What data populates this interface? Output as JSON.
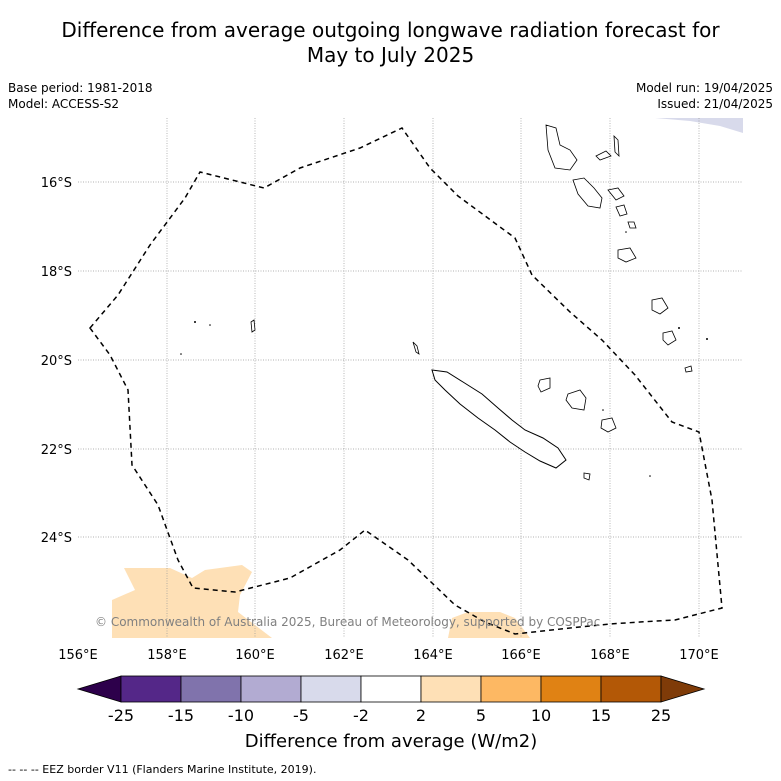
{
  "title_line1": "Difference from average outgoing longwave radiation forecast for",
  "title_line2": "May to July 2025",
  "base_period": "Base period: 1981-2018",
  "model": "Model: ACCESS-S2",
  "model_run": "Model run: 19/04/2025",
  "issued": "Issued: 21/04/2025",
  "copyright": "© Commonwealth of Australia 2025, Bureau of Meteorology, supported by COSPPac",
  "lat_labels": [
    "16°S",
    "18°S",
    "20°S",
    "22°S",
    "24°S"
  ],
  "lon_labels": [
    "156°E",
    "158°E",
    "160°E",
    "162°E",
    "164°E",
    "166°E",
    "168°E",
    "170°E"
  ],
  "colorbar": {
    "title": "Difference from average (W/m2)",
    "ticks": [
      "-25",
      "-15",
      "-10",
      "-5",
      "-2",
      "2",
      "5",
      "10",
      "15",
      "25"
    ],
    "colors": [
      "#2d004b",
      "#542788",
      "#8073ac",
      "#b2abd2",
      "#d8daeb",
      "#ffffff",
      "#fee0b6",
      "#fdb863",
      "#e08214",
      "#b35806",
      "#7f3b08"
    ]
  },
  "footnote": "--  --  -- EEZ border V11 (Flanders Marine Institute, 2019)."
}
